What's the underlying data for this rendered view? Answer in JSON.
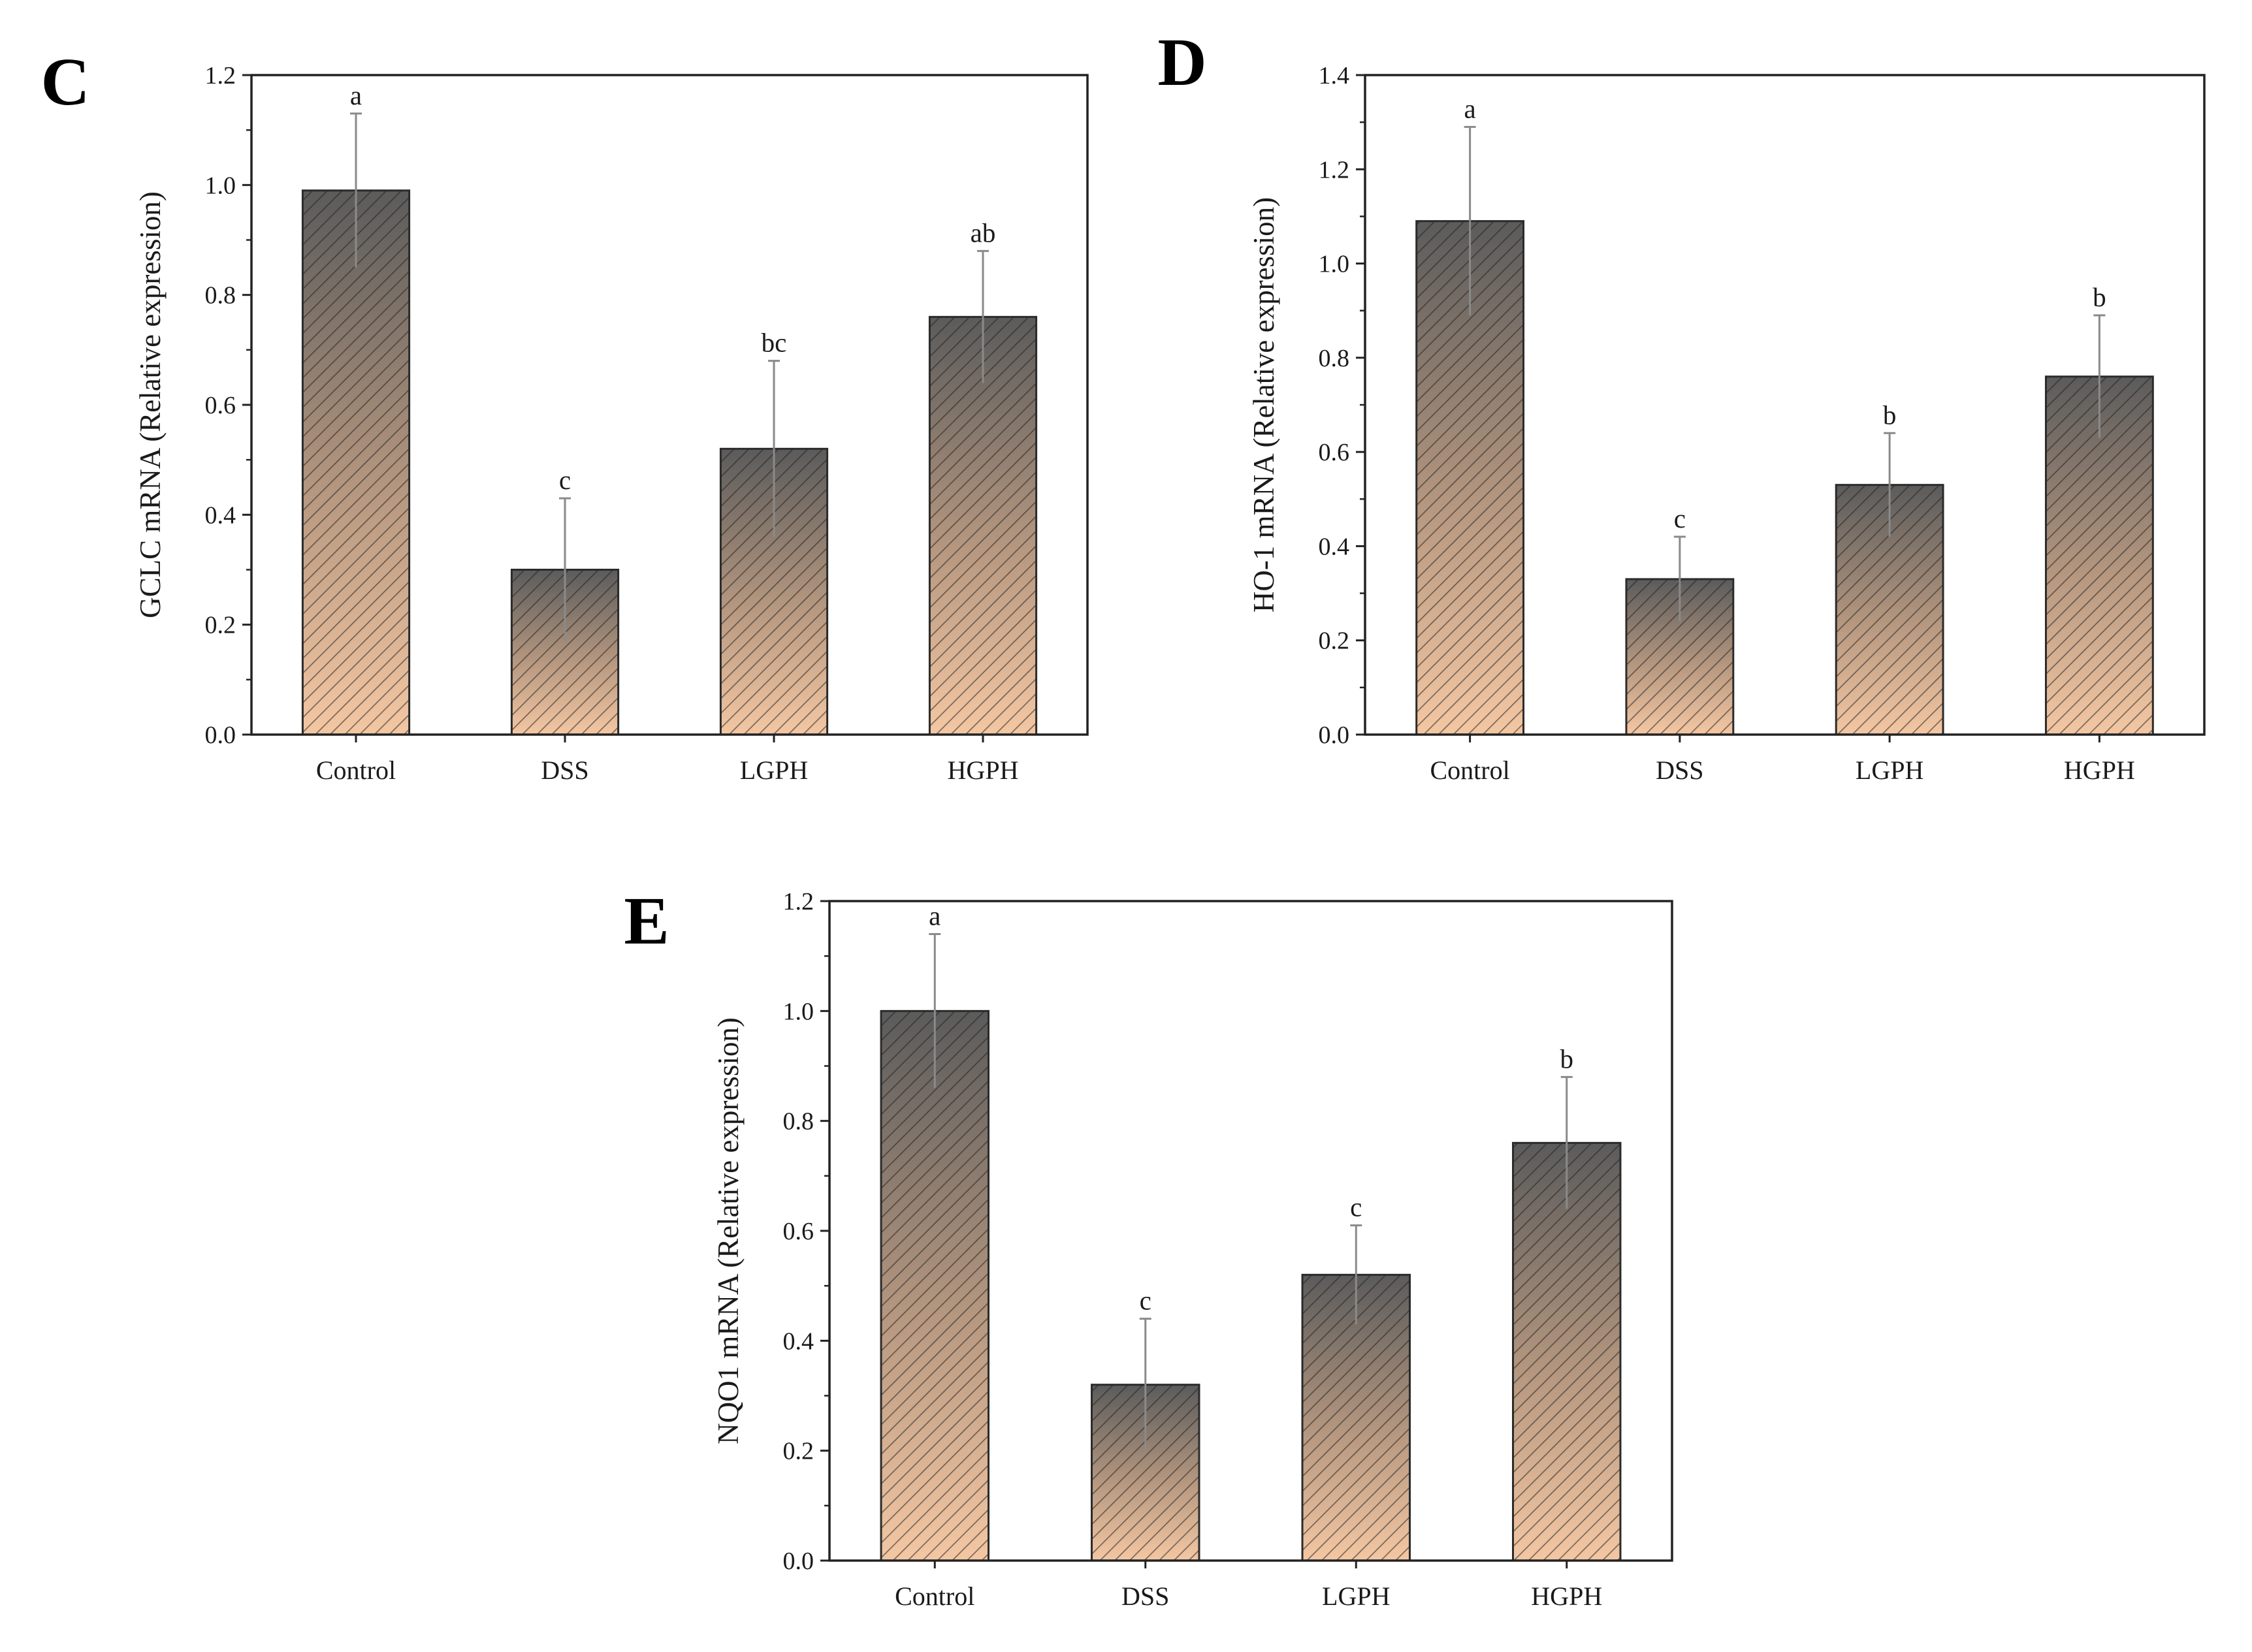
{
  "figure": {
    "bar_colors": {
      "top": "#5b5b5b",
      "mid": "#b5977f",
      "bottom": "#f4c7a3"
    },
    "hatch_color": "#1e1e1e",
    "error_bar_color": "#8a8a8a"
  },
  "chart_data": [
    {
      "type": "bar",
      "panel": "C",
      "title": "",
      "xlabel": "",
      "ylabel": "GCLC mRNA (Relative expression)",
      "ylim": [
        0,
        1.2
      ],
      "yticks": [
        0.0,
        0.2,
        0.4,
        0.6,
        0.8,
        1.0,
        1.2
      ],
      "ytick_labels": [
        "0.0",
        "0.2",
        "0.4",
        "0.6",
        "0.8",
        "1.0",
        "1.2"
      ],
      "categories": [
        "Control",
        "DSS",
        "LGPH",
        "HGPH"
      ],
      "values": [
        0.99,
        0.3,
        0.52,
        0.76
      ],
      "errors": [
        0.14,
        0.13,
        0.16,
        0.12
      ],
      "significance": [
        "a",
        "c",
        "bc",
        "ab"
      ]
    },
    {
      "type": "bar",
      "panel": "D",
      "title": "",
      "xlabel": "",
      "ylabel": "HO-1 mRNA (Relative expression)",
      "ylim": [
        0,
        1.4
      ],
      "yticks": [
        0.0,
        0.2,
        0.4,
        0.6,
        0.8,
        1.0,
        1.2,
        1.4
      ],
      "ytick_labels": [
        "0.0",
        "0.2",
        "0.4",
        "0.6",
        "0.8",
        "1.0",
        "1.2",
        "1.4"
      ],
      "categories": [
        "Control",
        "DSS",
        "LGPH",
        "HGPH"
      ],
      "values": [
        1.09,
        0.33,
        0.53,
        0.76
      ],
      "errors": [
        0.2,
        0.09,
        0.11,
        0.13
      ],
      "significance": [
        "a",
        "c",
        "b",
        "b"
      ]
    },
    {
      "type": "bar",
      "panel": "E",
      "title": "",
      "xlabel": "",
      "ylabel": "NQO1 mRNA (Relative expression)",
      "ylim": [
        0,
        1.2
      ],
      "yticks": [
        0.0,
        0.2,
        0.4,
        0.6,
        0.8,
        1.0,
        1.2
      ],
      "ytick_labels": [
        "0.0",
        "0.2",
        "0.4",
        "0.6",
        "0.8",
        "1.0",
        "1.2"
      ],
      "categories": [
        "Control",
        "DSS",
        "LGPH",
        "HGPH"
      ],
      "values": [
        1.0,
        0.32,
        0.52,
        0.76
      ],
      "errors": [
        0.14,
        0.12,
        0.09,
        0.12
      ],
      "significance": [
        "a",
        "c",
        "c",
        "b"
      ]
    }
  ]
}
